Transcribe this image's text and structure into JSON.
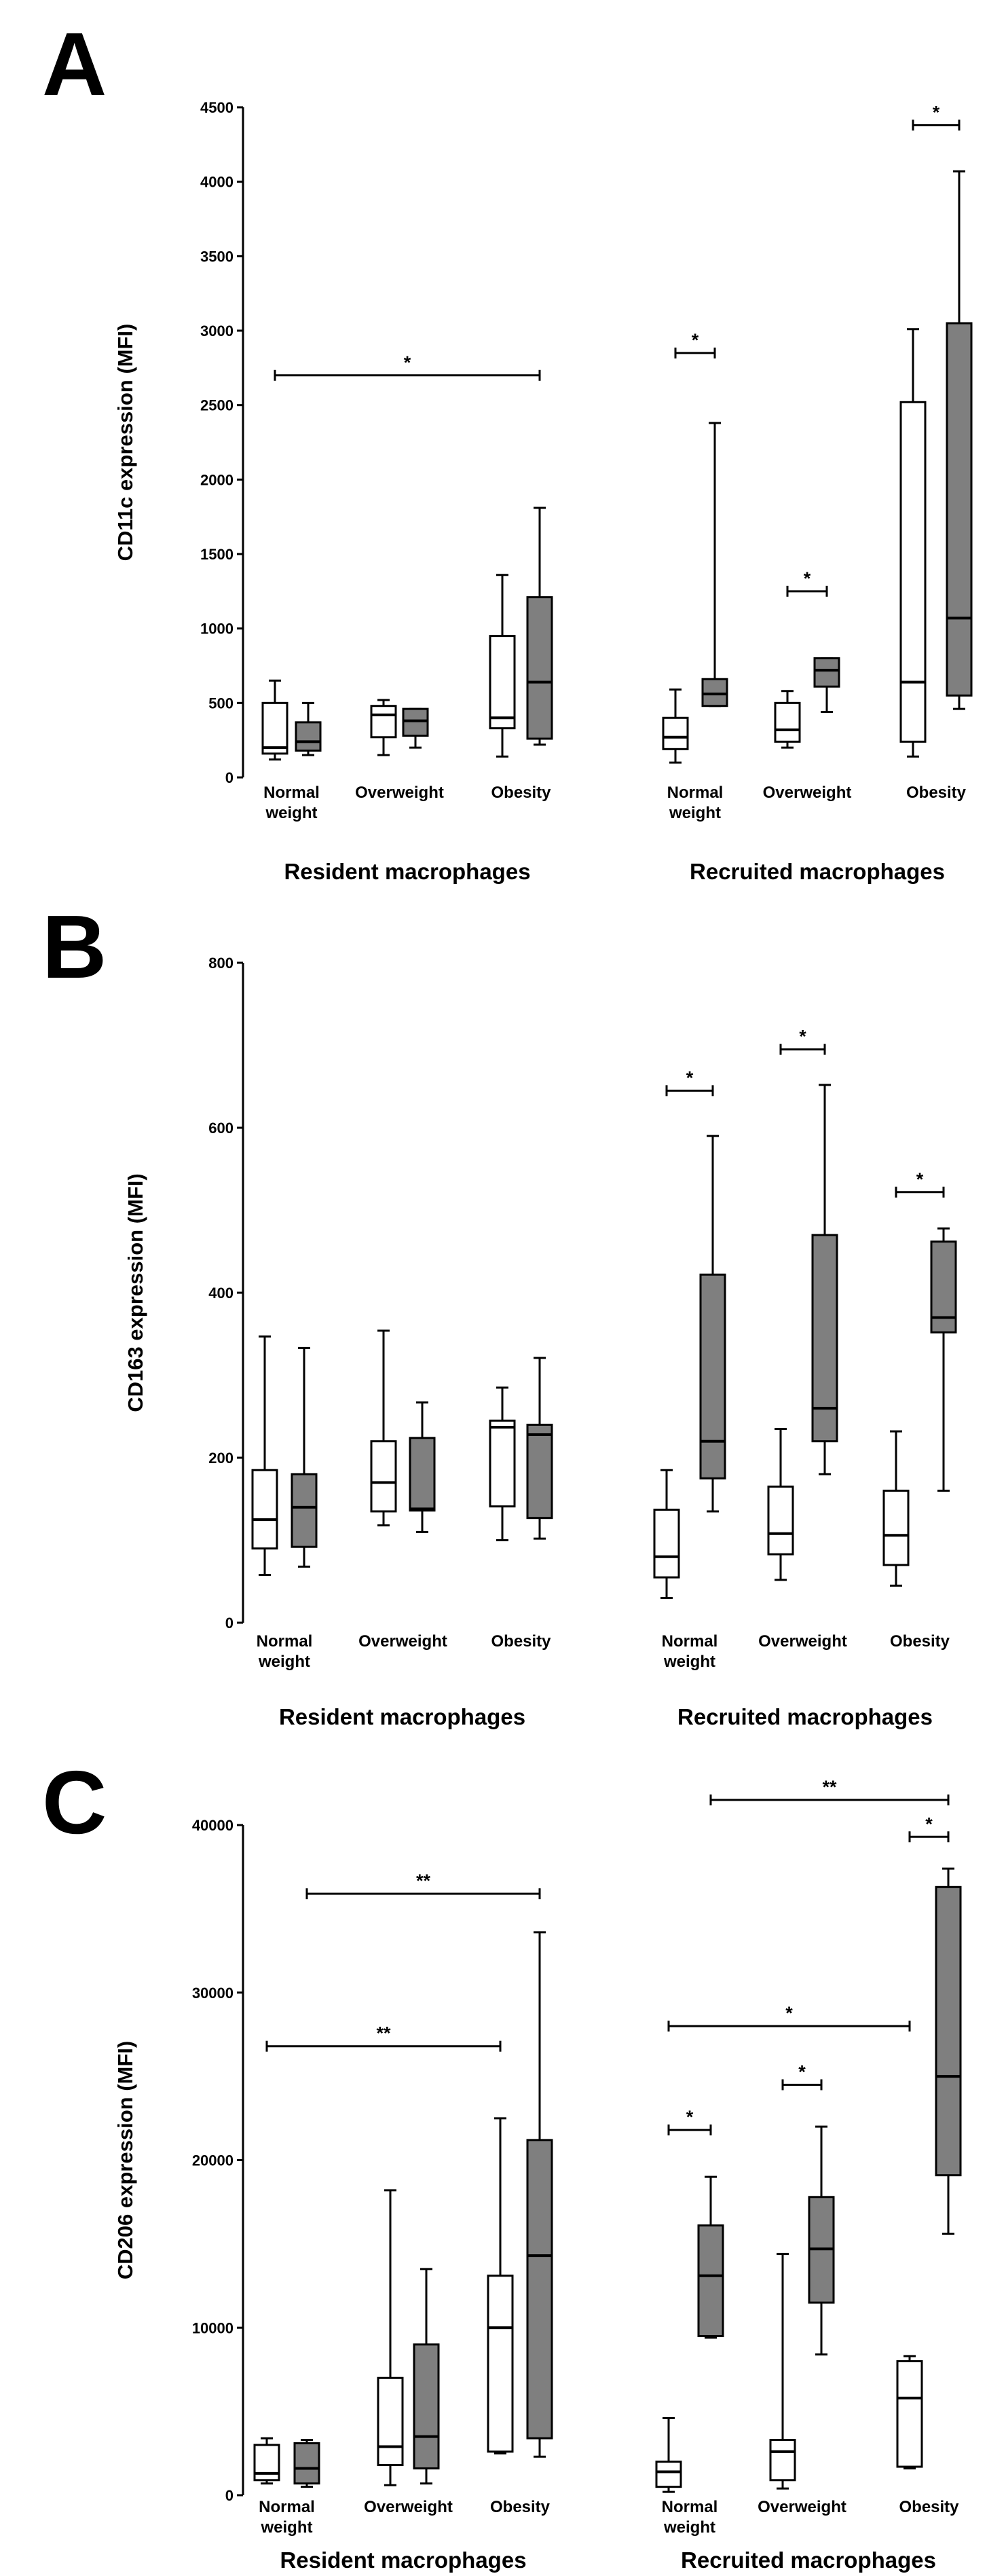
{
  "colors": {
    "normal_fill": "#ffffff",
    "obese_fill": "#7f7f7f",
    "stroke": "#000000"
  },
  "chart_data": [
    {
      "type": "box",
      "panel": "A",
      "ylabel": "CD11c  expression  (MFI)",
      "ylim": [
        0,
        4500
      ],
      "yticks": [
        0,
        500,
        1000,
        1500,
        2000,
        2500,
        3000,
        3500,
        4000,
        4500
      ],
      "groups": [
        {
          "label": "Resident macrophages",
          "categories": [
            {
              "label": [
                "Normal",
                "weight"
              ],
              "boxes": [
                {
                  "fill": "white",
                  "min": 120,
                  "q1": 160,
                  "median": 200,
                  "q3": 500,
                  "max": 650
                },
                {
                  "fill": "gray",
                  "min": 150,
                  "q1": 180,
                  "median": 240,
                  "q3": 370,
                  "max": 500
                }
              ]
            },
            {
              "label": [
                "Overweight"
              ],
              "boxes": [
                {
                  "fill": "white",
                  "min": 150,
                  "q1": 270,
                  "median": 420,
                  "q3": 480,
                  "max": 520
                },
                {
                  "fill": "gray",
                  "min": 200,
                  "q1": 280,
                  "median": 380,
                  "q3": 460,
                  "max": 460
                }
              ]
            },
            {
              "label": [
                "Obesity"
              ],
              "boxes": [
                {
                  "fill": "white",
                  "min": 140,
                  "q1": 330,
                  "median": 400,
                  "q3": 950,
                  "max": 1360
                },
                {
                  "fill": "gray",
                  "min": 220,
                  "q1": 260,
                  "median": 640,
                  "q3": 1210,
                  "max": 1810
                }
              ]
            }
          ]
        },
        {
          "label": "Recruited macrophages",
          "categories": [
            {
              "label": [
                "Normal",
                "weight"
              ],
              "boxes": [
                {
                  "fill": "white",
                  "min": 100,
                  "q1": 190,
                  "median": 270,
                  "q3": 400,
                  "max": 590
                },
                {
                  "fill": "gray",
                  "min": 480,
                  "q1": 480,
                  "median": 560,
                  "q3": 660,
                  "max": 2380
                }
              ]
            },
            {
              "label": [
                "Overweight"
              ],
              "boxes": [
                {
                  "fill": "white",
                  "min": 200,
                  "q1": 240,
                  "median": 320,
                  "q3": 500,
                  "max": 580
                },
                {
                  "fill": "gray",
                  "min": 440,
                  "q1": 610,
                  "median": 720,
                  "q3": 800,
                  "max": 800
                }
              ]
            },
            {
              "label": [
                "Obesity"
              ],
              "boxes": [
                {
                  "fill": "white",
                  "min": 140,
                  "q1": 240,
                  "median": 640,
                  "q3": 2520,
                  "max": 3010
                },
                {
                  "fill": "gray",
                  "min": 460,
                  "q1": 550,
                  "median": 1070,
                  "q3": 3050,
                  "max": 4070
                }
              ]
            }
          ]
        }
      ],
      "significance": [
        {
          "from": [
            0,
            0,
            0
          ],
          "to": [
            0,
            2,
            1
          ],
          "y": 2700,
          "label": "*"
        },
        {
          "from": [
            1,
            0,
            0
          ],
          "to": [
            1,
            0,
            1
          ],
          "y": 2850,
          "label": "*"
        },
        {
          "from": [
            1,
            1,
            0
          ],
          "to": [
            1,
            1,
            1
          ],
          "y": 1250,
          "label": "*"
        },
        {
          "from": [
            1,
            2,
            0
          ],
          "to": [
            1,
            2,
            1
          ],
          "y": 4380,
          "label": "*"
        }
      ]
    },
    {
      "type": "box",
      "panel": "B",
      "ylabel": "CD163  expression  (MFI)",
      "ylim": [
        0,
        800
      ],
      "yticks": [
        0,
        200,
        400,
        600,
        800
      ],
      "groups": [
        {
          "label": "Resident macrophages",
          "categories": [
            {
              "label": [
                "Normal",
                "weight"
              ],
              "boxes": [
                {
                  "fill": "white",
                  "min": 58,
                  "q1": 90,
                  "median": 125,
                  "q3": 185,
                  "max": 347
                },
                {
                  "fill": "gray",
                  "min": 68,
                  "q1": 92,
                  "median": 140,
                  "q3": 180,
                  "max": 333
                }
              ]
            },
            {
              "label": [
                "Overweight"
              ],
              "boxes": [
                {
                  "fill": "white",
                  "min": 118,
                  "q1": 135,
                  "median": 170,
                  "q3": 220,
                  "max": 354
                },
                {
                  "fill": "gray",
                  "min": 110,
                  "q1": 136,
                  "median": 138,
                  "q3": 224,
                  "max": 267
                }
              ]
            },
            {
              "label": [
                "Obesity"
              ],
              "boxes": [
                {
                  "fill": "white",
                  "min": 100,
                  "q1": 141,
                  "median": 237,
                  "q3": 245,
                  "max": 285
                },
                {
                  "fill": "gray",
                  "min": 102,
                  "q1": 127,
                  "median": 228,
                  "q3": 240,
                  "max": 321
                }
              ]
            }
          ]
        },
        {
          "label": "Recruited macrophages",
          "categories": [
            {
              "label": [
                "Normal",
                "weight"
              ],
              "boxes": [
                {
                  "fill": "white",
                  "min": 30,
                  "q1": 55,
                  "median": 80,
                  "q3": 137,
                  "max": 185
                },
                {
                  "fill": "gray",
                  "min": 135,
                  "q1": 175,
                  "median": 220,
                  "q3": 422,
                  "max": 590
                }
              ]
            },
            {
              "label": [
                "Overweight"
              ],
              "boxes": [
                {
                  "fill": "white",
                  "min": 52,
                  "q1": 83,
                  "median": 108,
                  "q3": 165,
                  "max": 235
                },
                {
                  "fill": "gray",
                  "min": 180,
                  "q1": 220,
                  "median": 260,
                  "q3": 470,
                  "max": 652
                }
              ]
            },
            {
              "label": [
                "Obesity"
              ],
              "boxes": [
                {
                  "fill": "white",
                  "min": 45,
                  "q1": 70,
                  "median": 106,
                  "q3": 160,
                  "max": 232
                },
                {
                  "fill": "gray",
                  "min": 160,
                  "q1": 352,
                  "median": 370,
                  "q3": 462,
                  "max": 478
                }
              ]
            }
          ]
        }
      ],
      "significance": [
        {
          "from": [
            1,
            0,
            0
          ],
          "to": [
            1,
            0,
            1
          ],
          "y": 645,
          "label": "*"
        },
        {
          "from": [
            1,
            1,
            0
          ],
          "to": [
            1,
            1,
            1
          ],
          "y": 695,
          "label": "*"
        },
        {
          "from": [
            1,
            2,
            0
          ],
          "to": [
            1,
            2,
            1
          ],
          "y": 522,
          "label": "*"
        }
      ]
    },
    {
      "type": "box",
      "panel": "C",
      "ylabel": "CD206  expression  (MFI)",
      "ylim": [
        0,
        40000
      ],
      "yticks": [
        0,
        10000,
        20000,
        30000,
        40000
      ],
      "groups": [
        {
          "label": "Resident macrophages",
          "categories": [
            {
              "label": [
                "Normal",
                "weight"
              ],
              "boxes": [
                {
                  "fill": "white",
                  "min": 700,
                  "q1": 900,
                  "median": 1300,
                  "q3": 3000,
                  "max": 3400
                },
                {
                  "fill": "gray",
                  "min": 500,
                  "q1": 700,
                  "median": 1600,
                  "q3": 3100,
                  "max": 3300
                }
              ]
            },
            {
              "label": [
                "Overweight"
              ],
              "boxes": [
                {
                  "fill": "white",
                  "min": 600,
                  "q1": 1800,
                  "median": 2900,
                  "q3": 7000,
                  "max": 18200
                },
                {
                  "fill": "gray",
                  "min": 700,
                  "q1": 1600,
                  "median": 3500,
                  "q3": 9000,
                  "max": 13500
                }
              ]
            },
            {
              "label": [
                "Obesity"
              ],
              "boxes": [
                {
                  "fill": "white",
                  "min": 2500,
                  "q1": 2600,
                  "median": 10000,
                  "q3": 13100,
                  "max": 22500
                },
                {
                  "fill": "gray",
                  "min": 2300,
                  "q1": 3400,
                  "median": 14300,
                  "q3": 21200,
                  "max": 33600
                }
              ]
            }
          ]
        },
        {
          "label": "Recruited macrophages",
          "categories": [
            {
              "label": [
                "Normal",
                "weight"
              ],
              "boxes": [
                {
                  "fill": "white",
                  "min": 200,
                  "q1": 500,
                  "median": 1400,
                  "q3": 2000,
                  "max": 4600
                },
                {
                  "fill": "gray",
                  "min": 9400,
                  "q1": 9500,
                  "median": 13100,
                  "q3": 16100,
                  "max": 19000
                }
              ]
            },
            {
              "label": [
                "Overweight"
              ],
              "boxes": [
                {
                  "fill": "white",
                  "min": 400,
                  "q1": 900,
                  "median": 2600,
                  "q3": 3300,
                  "max": 14400
                },
                {
                  "fill": "gray",
                  "min": 8400,
                  "q1": 11500,
                  "median": 14700,
                  "q3": 17800,
                  "max": 22000
                }
              ]
            },
            {
              "label": [
                "Obesity"
              ],
              "boxes": [
                {
                  "fill": "white",
                  "min": 1600,
                  "q1": 1700,
                  "median": 5800,
                  "q3": 8000,
                  "max": 8300
                },
                {
                  "fill": "gray",
                  "min": 15600,
                  "q1": 19100,
                  "median": 25000,
                  "q3": 36300,
                  "max": 37400
                }
              ]
            }
          ]
        }
      ],
      "significance": [
        {
          "from": [
            0,
            0,
            0
          ],
          "to": [
            0,
            2,
            0
          ],
          "y": 26800,
          "label": "**"
        },
        {
          "from": [
            0,
            0,
            1
          ],
          "to": [
            0,
            2,
            1
          ],
          "y": 35900,
          "label": "**"
        },
        {
          "from": [
            1,
            0,
            0
          ],
          "to": [
            1,
            2,
            0
          ],
          "y": 28000,
          "label": "*"
        },
        {
          "from": [
            1,
            0,
            0
          ],
          "to": [
            1,
            0,
            1
          ],
          "y": 21800,
          "label": "*"
        },
        {
          "from": [
            1,
            1,
            0
          ],
          "to": [
            1,
            1,
            1
          ],
          "y": 24500,
          "label": "*"
        },
        {
          "from": [
            1,
            0,
            1
          ],
          "to": [
            1,
            2,
            1
          ],
          "y": 41500,
          "label": "**"
        },
        {
          "from": [
            1,
            2,
            0
          ],
          "to": [
            1,
            2,
            1
          ],
          "y": 39300,
          "label": "*"
        }
      ]
    }
  ]
}
